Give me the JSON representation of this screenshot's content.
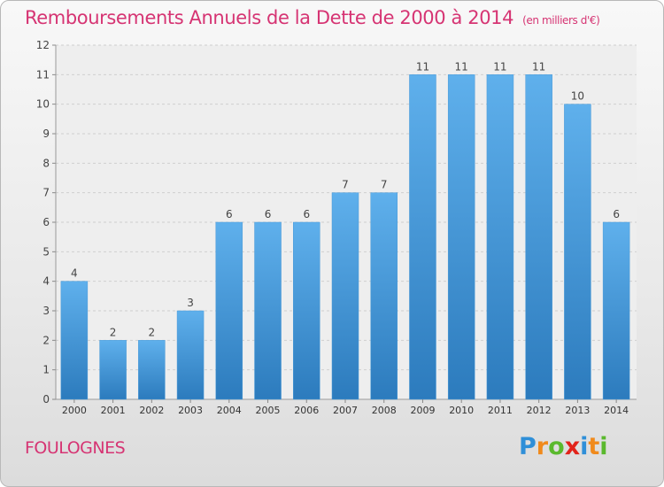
{
  "title": "Remboursements Annuels de la Dette de 2000 à 2014",
  "unit": "(en milliers d'€)",
  "commune": "FOULOGNES",
  "brand": {
    "letters": [
      "P",
      "r",
      "o",
      "x",
      "i",
      "t",
      "i"
    ],
    "colors": [
      "#2f8fd8",
      "#f08a1c",
      "#5ab92d",
      "#e2231a",
      "#2f8fd8",
      "#f08a1c",
      "#5ab92d"
    ]
  },
  "colors": {
    "title": "#d63473",
    "bar_top": "#5fb0ec",
    "bar_bottom": "#2c7bbd"
  },
  "chart_data": {
    "type": "bar",
    "title": "Remboursements Annuels de la Dette de 2000 à 2014",
    "xlabel": "",
    "ylabel": "",
    "categories": [
      "2000",
      "2001",
      "2002",
      "2003",
      "2004",
      "2005",
      "2006",
      "2007",
      "2008",
      "2009",
      "2010",
      "2011",
      "2012",
      "2013",
      "2014"
    ],
    "values": [
      4,
      2,
      2,
      3,
      6,
      6,
      6,
      7,
      7,
      11,
      11,
      11,
      11,
      10,
      6
    ],
    "y_ticks": [
      "0",
      "1",
      "2",
      "3",
      "4",
      "5",
      "6",
      "7",
      "8",
      "9",
      "10",
      "11",
      "12"
    ],
    "ylim": [
      0,
      12
    ],
    "grid": "horizontal"
  }
}
